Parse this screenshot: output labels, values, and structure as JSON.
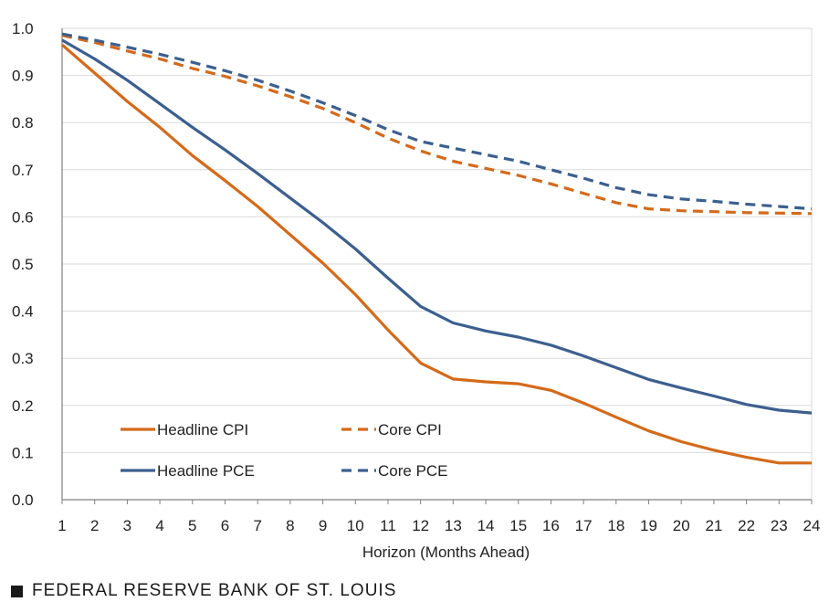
{
  "chart_data": {
    "type": "line",
    "title": "",
    "xlabel": "Horizon (Months Ahead)",
    "ylabel": "",
    "x": [
      1,
      2,
      3,
      4,
      5,
      6,
      7,
      8,
      9,
      10,
      11,
      12,
      13,
      14,
      15,
      16,
      17,
      18,
      19,
      20,
      21,
      22,
      23,
      24
    ],
    "ylim": [
      0,
      1.0
    ],
    "yticks": [
      "0.0",
      "0.1",
      "0.2",
      "0.3",
      "0.4",
      "0.5",
      "0.6",
      "0.7",
      "0.8",
      "0.9",
      "1.0"
    ],
    "grid": true,
    "legend_position": "bottom-left",
    "series": [
      {
        "name": "Headline CPI",
        "color": "#d46a1a",
        "dash": "solid",
        "values": [
          0.965,
          0.905,
          0.845,
          0.79,
          0.73,
          0.677,
          0.622,
          0.562,
          0.502,
          0.435,
          0.36,
          0.29,
          0.256,
          0.25,
          0.246,
          0.232,
          0.205,
          0.175,
          0.146,
          0.123,
          0.105,
          0.09,
          0.078,
          0.078
        ]
      },
      {
        "name": "Core CPI",
        "color": "#d46a1a",
        "dash": "dashed",
        "values": [
          0.985,
          0.97,
          0.952,
          0.935,
          0.915,
          0.898,
          0.878,
          0.855,
          0.83,
          0.8,
          0.767,
          0.74,
          0.718,
          0.703,
          0.688,
          0.67,
          0.65,
          0.63,
          0.617,
          0.613,
          0.611,
          0.609,
          0.608,
          0.607
        ]
      },
      {
        "name": "Headline PCE",
        "color": "#3c5f8f",
        "dash": "solid",
        "values": [
          0.975,
          0.935,
          0.89,
          0.84,
          0.79,
          0.742,
          0.692,
          0.64,
          0.588,
          0.532,
          0.47,
          0.41,
          0.375,
          0.358,
          0.345,
          0.328,
          0.305,
          0.28,
          0.255,
          0.237,
          0.22,
          0.202,
          0.19,
          0.184
        ]
      },
      {
        "name": "Core PCE",
        "color": "#3c5f8f",
        "dash": "dashed",
        "values": [
          0.988,
          0.975,
          0.96,
          0.945,
          0.928,
          0.91,
          0.89,
          0.867,
          0.842,
          0.815,
          0.785,
          0.76,
          0.746,
          0.732,
          0.718,
          0.7,
          0.682,
          0.662,
          0.647,
          0.638,
          0.633,
          0.627,
          0.622,
          0.617
        ]
      }
    ]
  },
  "footer": {
    "text": "FEDERAL RESERVE BANK OF ST. LOUIS"
  }
}
